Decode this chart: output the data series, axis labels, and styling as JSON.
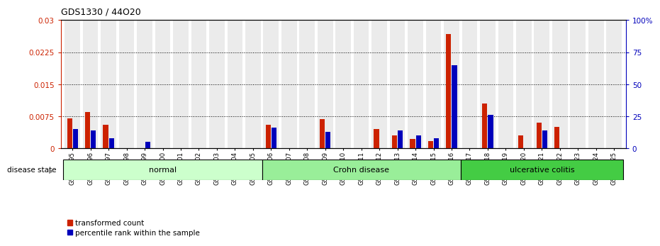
{
  "title": "GDS1330 / 44O20",
  "samples": [
    "GSM29595",
    "GSM29596",
    "GSM29597",
    "GSM29598",
    "GSM29599",
    "GSM29600",
    "GSM29601",
    "GSM29602",
    "GSM29603",
    "GSM29604",
    "GSM29605",
    "GSM29606",
    "GSM29607",
    "GSM29608",
    "GSM29609",
    "GSM29610",
    "GSM29611",
    "GSM29612",
    "GSM29613",
    "GSM29614",
    "GSM29615",
    "GSM29616",
    "GSM29617",
    "GSM29618",
    "GSM29619",
    "GSM29620",
    "GSM29621",
    "GSM29622",
    "GSM29623",
    "GSM29624",
    "GSM29625"
  ],
  "red_values": [
    0.007,
    0.0085,
    0.0055,
    0.0,
    0.0,
    0.0,
    0.0,
    0.0,
    0.0,
    0.0,
    0.0,
    0.0055,
    0.0,
    0.0,
    0.0068,
    0.0,
    0.0,
    0.0045,
    0.003,
    0.0022,
    0.0018,
    0.0268,
    0.0,
    0.0105,
    0.0,
    0.003,
    0.006,
    0.005,
    0.0,
    0.0,
    0.0
  ],
  "blue_values_percentile": [
    15,
    14,
    8,
    0,
    5,
    0,
    0,
    0,
    0,
    0,
    0,
    16,
    0,
    0,
    13,
    0,
    0,
    0,
    14,
    10,
    8,
    65,
    0,
    26,
    0,
    0,
    14,
    0,
    0,
    0,
    0
  ],
  "groups": [
    {
      "label": "normal",
      "start": 0,
      "end": 10,
      "color": "#ccffcc"
    },
    {
      "label": "Crohn disease",
      "start": 11,
      "end": 21,
      "color": "#99ee99"
    },
    {
      "label": "ulcerative colitis",
      "start": 22,
      "end": 30,
      "color": "#44cc44"
    }
  ],
  "ylim_left": [
    0.0,
    0.03
  ],
  "ylim_right": [
    0,
    100
  ],
  "yticks_left": [
    0.0,
    0.0075,
    0.015,
    0.0225,
    0.03
  ],
  "yticks_left_labels": [
    "0",
    "0.0075",
    "0.015",
    "0.0225",
    "0.03"
  ],
  "yticks_right": [
    0,
    25,
    50,
    75,
    100
  ],
  "yticks_right_labels": [
    "0",
    "25",
    "50",
    "75",
    "100%"
  ],
  "red_color": "#cc2200",
  "blue_color": "#0000bb",
  "left_label_color": "#cc2200",
  "right_label_color": "#0000bb",
  "disease_state_label": "disease state",
  "legend_red": "transformed count",
  "legend_blue": "percentile rank within the sample",
  "bar_bg_color": "#c8c8c8",
  "bar_bg_alpha": 0.35
}
